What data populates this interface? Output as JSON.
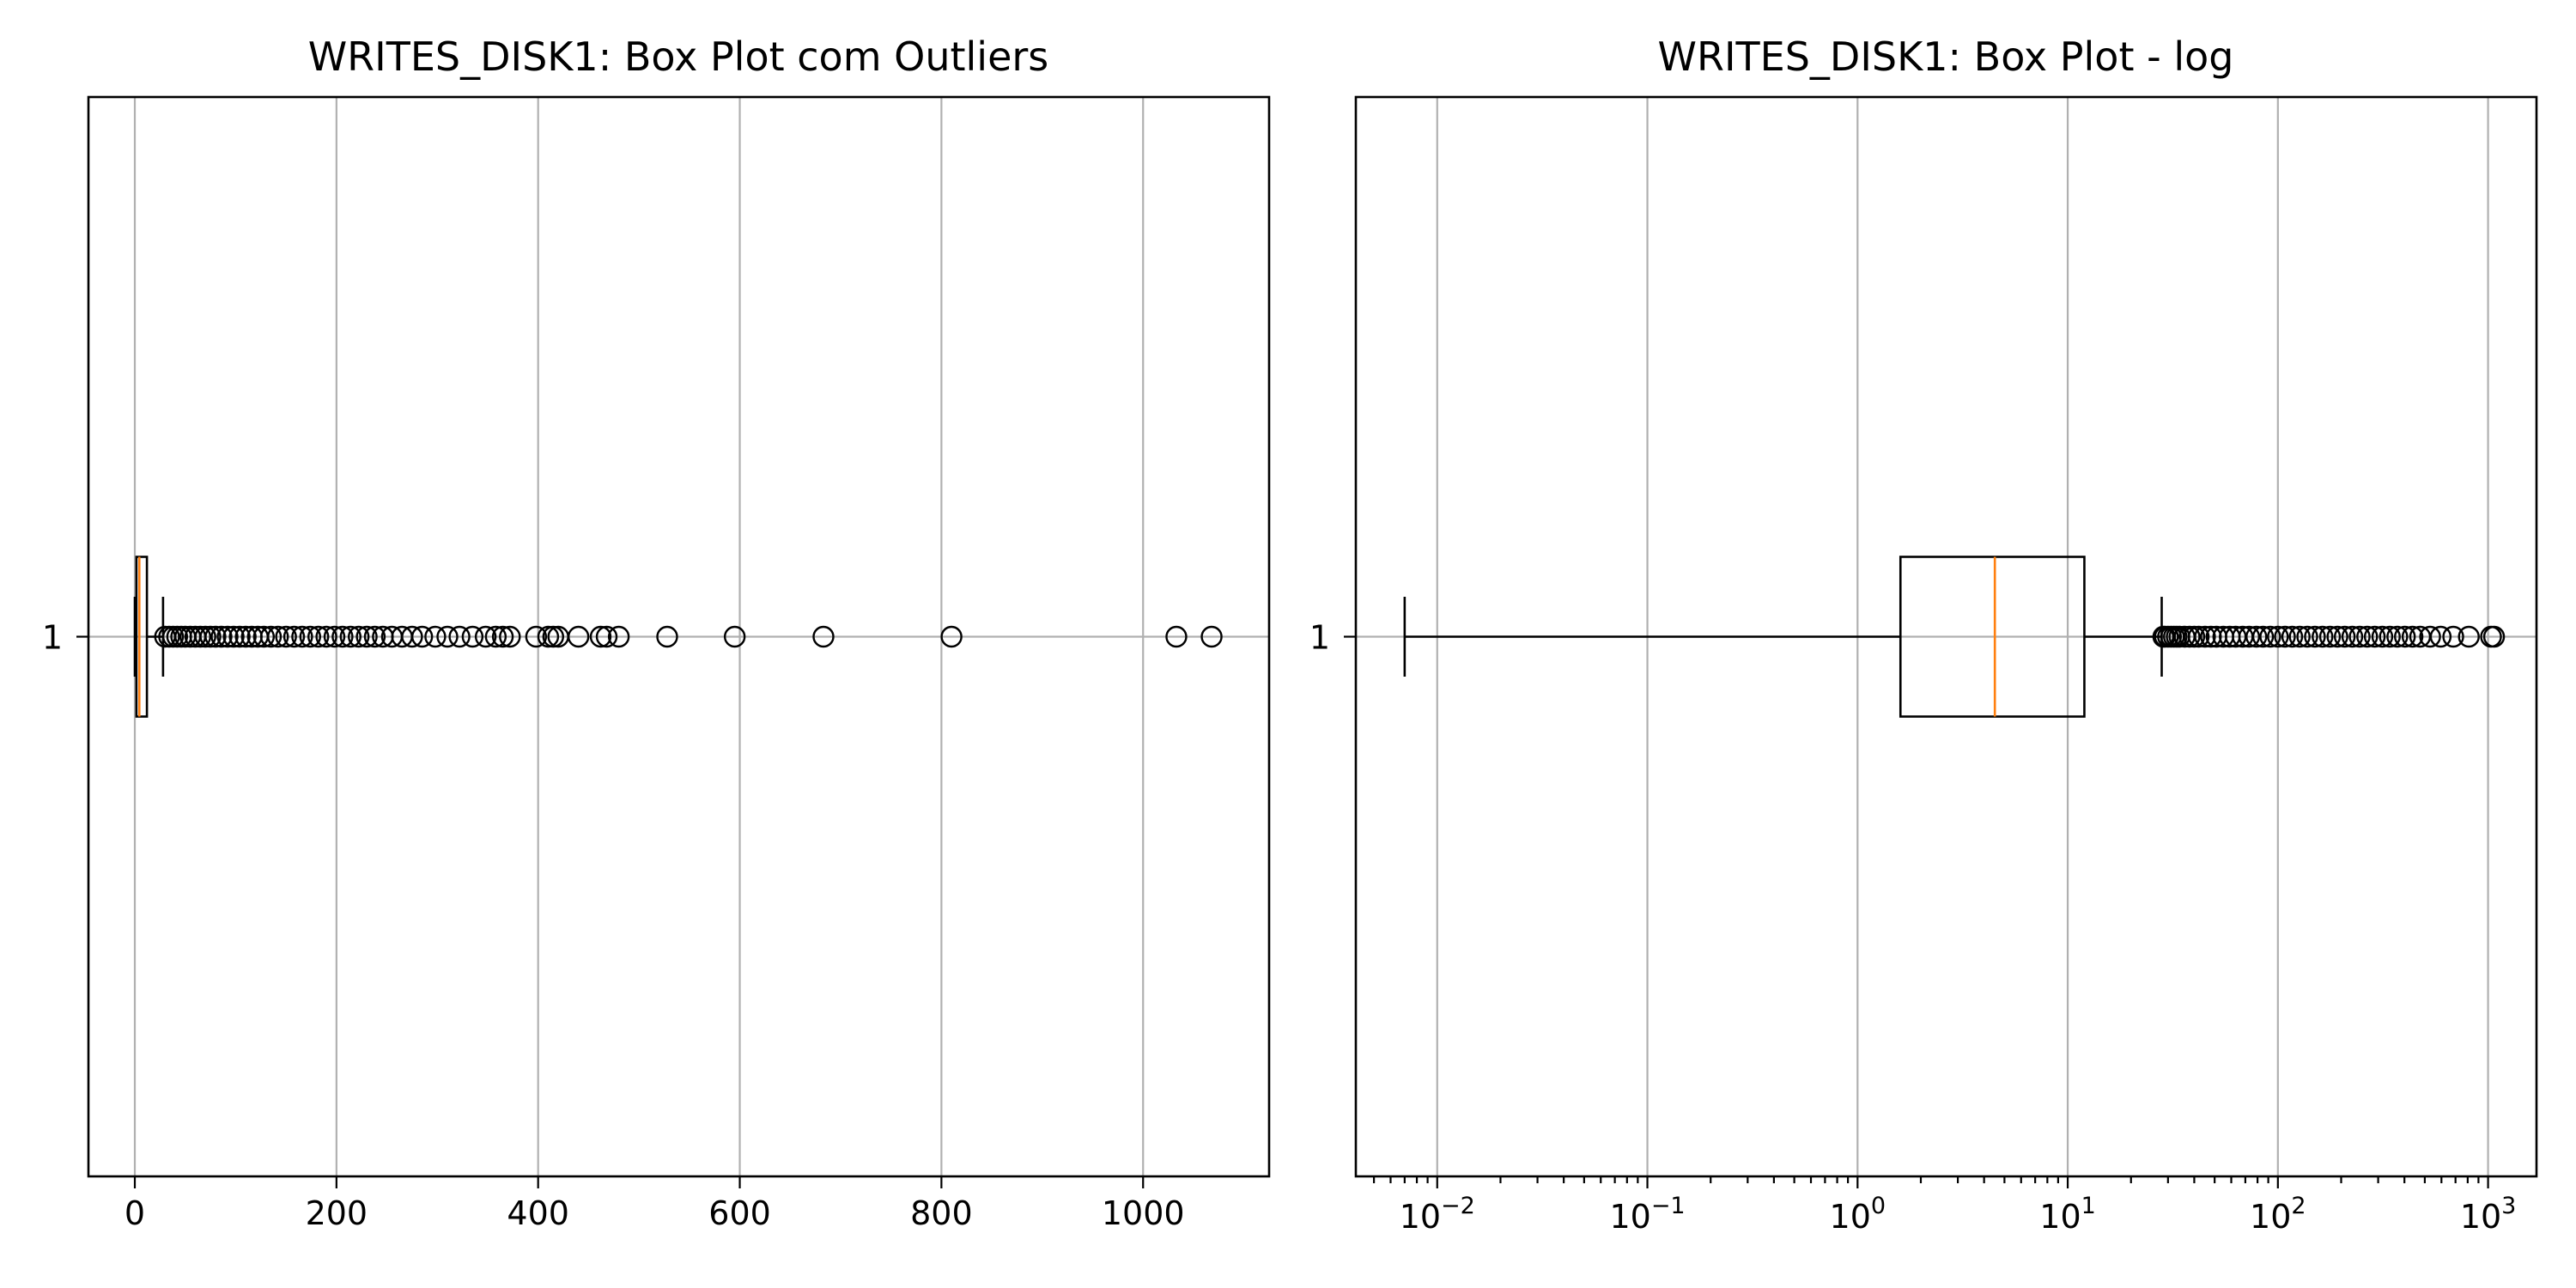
{
  "chart_data": [
    {
      "type": "boxplot",
      "orientation": "horizontal",
      "title": "WRITES_DISK1: Box Plot com Outliers",
      "scale": "linear",
      "xlim": [
        -46,
        1125
      ],
      "xticks": [
        0,
        200,
        400,
        600,
        800,
        1000
      ],
      "xtick_labels": [
        "0",
        "200",
        "400",
        "600",
        "800",
        "1000"
      ],
      "ytick_labels": [
        "1"
      ],
      "grid": true,
      "box": {
        "whisker_low": 0.007,
        "q1": 1.6,
        "median": 4.5,
        "q3": 12,
        "whisker_high": 28,
        "outliers": [
          30,
          34,
          38,
          42,
          46,
          50,
          55,
          60,
          65,
          70,
          75,
          80,
          86,
          92,
          98,
          104,
          110,
          116,
          122,
          128,
          135,
          142,
          150,
          158,
          166,
          174,
          182,
          190,
          198,
          206,
          214,
          222,
          230,
          238,
          246,
          255,
          265,
          275,
          285,
          298,
          310,
          322,
          335,
          348,
          358,
          365,
          372,
          398,
          410,
          415,
          420,
          440,
          462,
          468,
          480,
          528,
          595,
          683,
          810,
          1033,
          1068
        ]
      }
    },
    {
      "type": "boxplot",
      "orientation": "horizontal",
      "title": "WRITES_DISK1: Box Plot - log",
      "scale": "log",
      "xlim": [
        0.0041,
        1700
      ],
      "xticks": [
        0.01,
        0.1,
        1,
        10,
        100,
        1000
      ],
      "xtick_labels": [
        {
          "base": "10",
          "exp": "−2"
        },
        {
          "base": "10",
          "exp": "−1"
        },
        {
          "base": "10",
          "exp": "0"
        },
        {
          "base": "10",
          "exp": "1"
        },
        {
          "base": "10",
          "exp": "2"
        },
        {
          "base": "10",
          "exp": "3"
        }
      ],
      "ytick_labels": [
        "1"
      ],
      "grid": true,
      "box": {
        "whisker_low": 0.007,
        "q1": 1.6,
        "median": 4.5,
        "q3": 12,
        "whisker_high": 28,
        "outliers": [
          28.5,
          29,
          30,
          31,
          32,
          33,
          34,
          36,
          38,
          40,
          42,
          45,
          48,
          51,
          55,
          59,
          63,
          68,
          73,
          79,
          85,
          92,
          100,
          108,
          117,
          127,
          138,
          150,
          163,
          177,
          192,
          208,
          226,
          245,
          266,
          289,
          314,
          341,
          370,
          402,
          437,
          475,
          530,
          595,
          683,
          810,
          1033,
          1068
        ]
      }
    }
  ]
}
